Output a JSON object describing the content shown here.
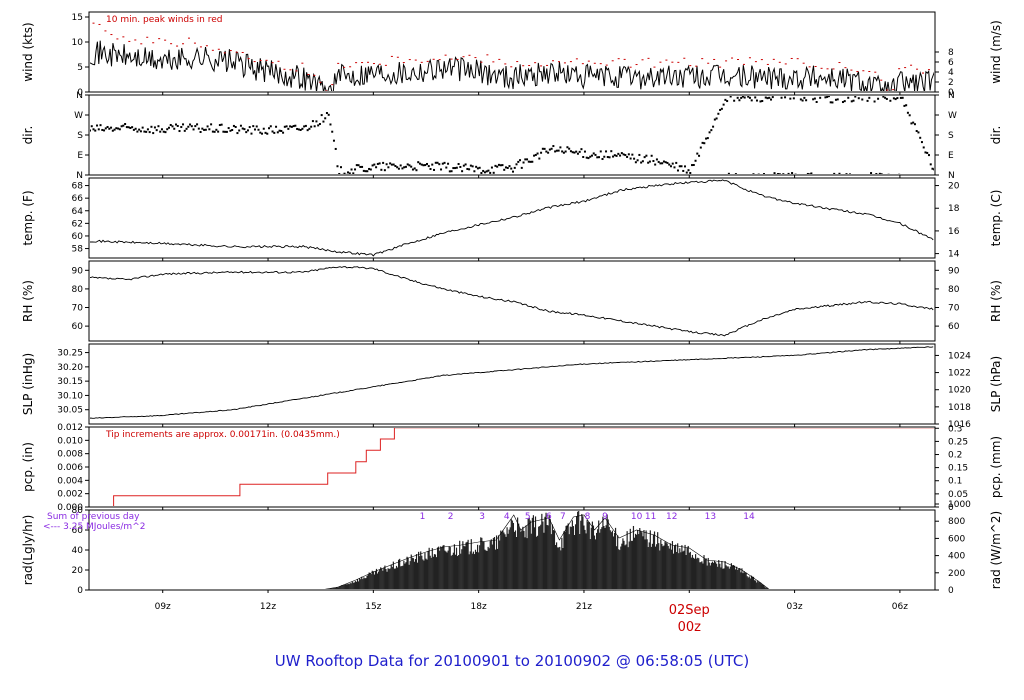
{
  "title": "UW Rooftop Data for 20100901  to  20100902 @ 06:58:05  (UTC)",
  "date_marker": {
    "line1": "02Sep",
    "line2": "00z"
  },
  "x_axis": {
    "ticks": [
      "09z",
      "12z",
      "15z",
      "18z",
      "21z",
      "03z",
      "06z"
    ],
    "range_hours": [
      6.9,
      31.0
    ],
    "tick_hours": [
      9,
      12,
      15,
      18,
      21,
      27,
      30
    ],
    "date_hour": 24
  },
  "colors": {
    "trace": "#000000",
    "peak": "#cc0000",
    "precip": "#dd2222",
    "note_red": "#cc0000",
    "note_purple": "#8a2be2",
    "title": "#1f1fcc"
  },
  "annotations": {
    "wind_note": "10 min. peak winds in red",
    "pcp_note": "Tip increments are approx. 0.00171in. (0.0435mm.)",
    "rad_note1": "Sum of previous day",
    "rad_note2": "<--- 3.25 MJoules/m^2"
  },
  "chart_data": [
    {
      "type": "line",
      "id": "wind",
      "ylabel_left": "wind (kts)",
      "ylabel_right": "wind (m/s)",
      "ylim": [
        0,
        16
      ],
      "yticks_left": [
        "0",
        "5",
        "10",
        "15"
      ],
      "yticks_left_values": [
        0,
        5,
        10,
        15
      ],
      "yticks_right": [
        "0",
        "2",
        "4",
        "6",
        "8"
      ],
      "yticks_right_values": [
        0,
        2,
        4,
        6,
        8
      ],
      "right_scale": 0.5144,
      "x": [
        7,
        8,
        9,
        10,
        11,
        12,
        13,
        13.7,
        14,
        15,
        16,
        17,
        18,
        19,
        20,
        21,
        22,
        23,
        24,
        25,
        26,
        27,
        28,
        29,
        29.7,
        30,
        31
      ],
      "y": [
        8,
        7,
        6,
        7,
        6,
        4,
        3,
        0,
        3,
        4,
        4,
        5,
        4,
        3,
        4,
        3,
        3,
        3,
        3,
        3,
        3,
        3,
        3,
        2,
        0,
        2,
        2
      ],
      "peaks": [
        13,
        11,
        10,
        10,
        8,
        6,
        5,
        0,
        6,
        6,
        7,
        7,
        7,
        6,
        6,
        6,
        6,
        6,
        6,
        6,
        6,
        6,
        5,
        5,
        0,
        5,
        4
      ]
    },
    {
      "type": "scatter",
      "id": "dir",
      "ylabel_left": "dir.",
      "ylabel_right": "dir.",
      "ylim": [
        0,
        360
      ],
      "yticks_left": [
        "N",
        "E",
        "S",
        "W",
        "N"
      ],
      "yticks_left_values": [
        0,
        90,
        180,
        270,
        360
      ],
      "yticks_right": [
        "N",
        "E",
        "S",
        "W",
        "N"
      ],
      "yticks_right_values": [
        0,
        90,
        180,
        270,
        360
      ],
      "x": [
        7,
        8,
        9,
        10,
        11,
        12,
        13,
        13.7,
        14,
        15,
        16,
        17,
        18,
        19,
        20,
        21,
        22,
        23,
        24,
        25,
        26,
        27,
        28,
        29,
        30,
        31
      ],
      "y": [
        210,
        215,
        210,
        215,
        210,
        205,
        215,
        270,
        20,
        40,
        45,
        40,
        30,
        40,
        120,
        100,
        90,
        70,
        20,
        350,
        355,
        355,
        350,
        355,
        355,
        5
      ]
    },
    {
      "type": "line",
      "id": "temp",
      "ylabel_left": "temp. (F)",
      "ylabel_right": "temp. (C)",
      "ylim": [
        56.5,
        69.2
      ],
      "yticks_left": [
        "58",
        "60",
        "62",
        "64",
        "66",
        "68"
      ],
      "yticks_left_values": [
        58,
        60,
        62,
        64,
        66,
        68
      ],
      "yticks_right": [
        "14",
        "16",
        "18",
        "20"
      ],
      "yticks_right_values": [
        57.2,
        60.8,
        64.4,
        68.0
      ],
      "x": [
        7,
        9,
        11,
        13,
        14,
        15,
        16,
        17,
        18,
        19,
        20,
        21,
        22,
        23,
        24,
        25,
        26,
        27,
        28,
        29,
        30,
        31
      ],
      "y": [
        59.2,
        58.8,
        58.3,
        58.3,
        57.5,
        57.0,
        58.8,
        60.5,
        61.8,
        63.0,
        64.5,
        65.5,
        67.2,
        68.0,
        68.5,
        68.8,
        66.5,
        65.2,
        64.3,
        63.5,
        62.0,
        59.3
      ]
    },
    {
      "type": "line",
      "id": "rh",
      "ylabel_left": "RH (%)",
      "ylabel_right": "RH (%)",
      "ylim": [
        52,
        95
      ],
      "yticks_left": [
        "60",
        "70",
        "80",
        "90"
      ],
      "yticks_left_values": [
        60,
        70,
        80,
        90
      ],
      "yticks_right": [
        "60",
        "70",
        "80",
        "90"
      ],
      "yticks_right_values": [
        60,
        70,
        80,
        90
      ],
      "x": [
        7,
        8,
        9,
        11,
        13,
        14,
        15,
        16,
        17,
        18,
        19,
        20,
        21,
        22,
        23,
        24,
        25,
        26,
        27,
        28,
        29,
        30,
        31
      ],
      "y": [
        86,
        85,
        88,
        89,
        89,
        92,
        91,
        85,
        80,
        76,
        73,
        68,
        66,
        63,
        60,
        57,
        55,
        63,
        69,
        71,
        73,
        72,
        69
      ]
    },
    {
      "type": "line",
      "id": "slp",
      "ylabel_left": "SLP (inHg)",
      "ylabel_right": "SLP (hPa)",
      "ylim": [
        30.0,
        30.28
      ],
      "yticks_left": [
        "30.05",
        "30.10",
        "30.15",
        "30.20",
        "30.25"
      ],
      "yticks_left_values": [
        30.05,
        30.1,
        30.15,
        30.2,
        30.25
      ],
      "yticks_right": [
        "1016",
        "1018",
        "1020",
        "1022",
        "1024"
      ],
      "yticks_right_values": [
        30.0,
        30.06,
        30.12,
        30.18,
        30.24
      ],
      "x": [
        7,
        9,
        11,
        13,
        15,
        17,
        19,
        21,
        23,
        25,
        27,
        29,
        31
      ],
      "y": [
        30.02,
        30.03,
        30.05,
        30.09,
        30.13,
        30.17,
        30.19,
        30.21,
        30.22,
        30.23,
        30.24,
        30.26,
        30.27
      ]
    },
    {
      "type": "line",
      "id": "pcp",
      "ylabel_left": "pcp. (in)",
      "ylabel_right": "pcp. (mm)",
      "ylim": [
        0,
        0.012
      ],
      "yticks_left": [
        "0.000",
        "0.002",
        "0.004",
        "0.006",
        "0.008",
        "0.010",
        "0.012"
      ],
      "yticks_left_values": [
        0,
        0.002,
        0.004,
        0.006,
        0.008,
        0.01,
        0.012
      ],
      "yticks_right": [
        "0",
        "0.05",
        "0.1",
        "0.15",
        "0.2",
        "0.25",
        "0.3"
      ],
      "yticks_right_values": [
        0,
        0.00197,
        0.00394,
        0.00591,
        0.00787,
        0.00984,
        0.01181
      ],
      "x": [
        6.9,
        7.6,
        7.6,
        11.2,
        11.2,
        13.7,
        13.7,
        14.5,
        14.5,
        14.8,
        14.8,
        15.2,
        15.2,
        15.6,
        15.6,
        31
      ],
      "y": [
        0,
        0,
        0.0017,
        0.0017,
        0.0034,
        0.0034,
        0.0051,
        0.0051,
        0.0068,
        0.0068,
        0.0085,
        0.0085,
        0.0102,
        0.0102,
        0.0119,
        0.0119
      ]
    },
    {
      "type": "area",
      "id": "rad",
      "ylabel_left": "rad(Lgly/hr)",
      "ylabel_right": "rad (W/m^2)",
      "ylim": [
        0,
        80
      ],
      "yticks_left": [
        "0",
        "20",
        "40",
        "60",
        "80"
      ],
      "yticks_left_values": [
        0,
        20,
        40,
        60,
        80
      ],
      "yticks_right": [
        "0",
        "200",
        "400",
        "600",
        "800",
        "1000"
      ],
      "yticks_right_values": [
        0,
        17.2,
        34.4,
        51.6,
        68.8,
        86.0
      ],
      "x": [
        13.5,
        14,
        14.5,
        15,
        15.5,
        16,
        16.5,
        17,
        17.5,
        18,
        18.5,
        19,
        19.2,
        19.5,
        20,
        20.3,
        20.7,
        21,
        21.3,
        21.6,
        22,
        22.5,
        23,
        23.5,
        24,
        24.5,
        25,
        25.5,
        26,
        26.3
      ],
      "y": [
        0,
        3,
        10,
        18,
        25,
        32,
        38,
        43,
        45,
        48,
        50,
        75,
        60,
        68,
        72,
        50,
        73,
        75,
        60,
        72,
        52,
        60,
        55,
        45,
        42,
        30,
        28,
        20,
        8,
        0
      ],
      "hour_labels": [
        "1",
        "2",
        "3",
        "4",
        "5",
        "6",
        "7",
        "8",
        "9",
        "10",
        "11",
        "12",
        "13",
        "14"
      ],
      "hour_label_x": [
        16.4,
        17.2,
        18.1,
        18.8,
        19.4,
        20.0,
        20.4,
        21.1,
        21.6,
        22.5,
        22.9,
        23.5,
        24.6,
        25.7
      ]
    }
  ]
}
